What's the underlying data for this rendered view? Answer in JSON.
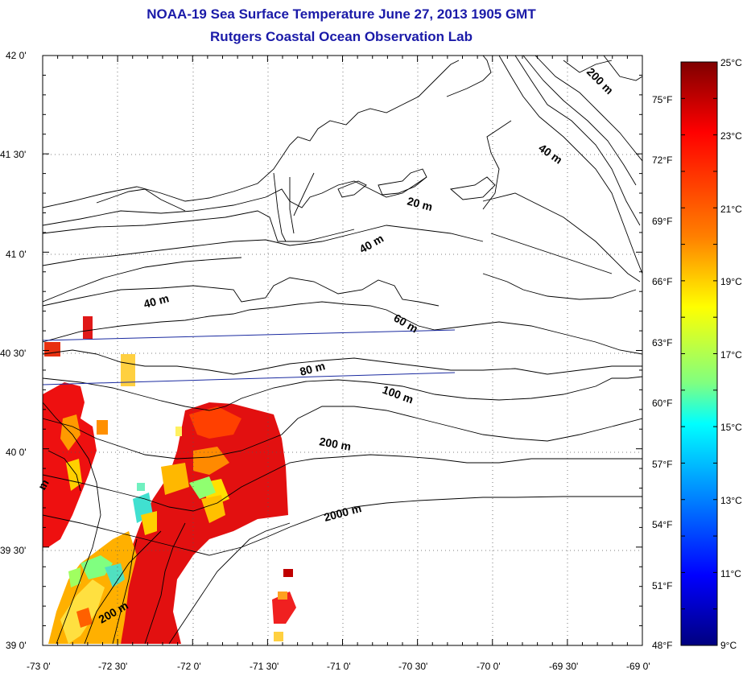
{
  "title": {
    "line1": "NOAA-19 Sea Surface Temperature June 27, 2013 1905 GMT",
    "line2": "Rutgers Coastal Ocean Observation Lab"
  },
  "map": {
    "lat_labels": [
      "42 0'",
      "41 30'",
      "41 0'",
      "40 30'",
      "40 0'",
      "39 30'",
      "39 0'"
    ],
    "lon_labels": [
      "-73 0'",
      "-72 30'",
      "-72 0'",
      "-71 30'",
      "-71 0'",
      "-70 30'",
      "-70 0'",
      "-69 30'",
      "-69 0'"
    ],
    "lat_range": [
      39.0,
      42.0
    ],
    "lon_range": [
      -73.0,
      -69.0
    ],
    "grid": true,
    "contour_labels": [
      {
        "text": "200 m",
        "lon": -69.2,
        "lat": 41.82,
        "angle": 45
      },
      {
        "text": "40 m",
        "lon": -69.55,
        "lat": 41.5,
        "angle": 35
      },
      {
        "text": "20 m",
        "lon": -70.55,
        "lat": 41.2,
        "angle": 15
      },
      {
        "text": "40 m",
        "lon": -70.75,
        "lat": 41.05,
        "angle": -30
      },
      {
        "text": "40 m",
        "lon": -72.4,
        "lat": 40.72,
        "angle": -15
      },
      {
        "text": "60 m",
        "lon": -70.45,
        "lat": 40.62,
        "angle": 30
      },
      {
        "text": "80 m",
        "lon": -71.5,
        "lat": 40.4,
        "angle": -15
      },
      {
        "text": "100 m",
        "lon": -70.75,
        "lat": 40.28,
        "angle": 20
      },
      {
        "text": "200 m",
        "lon": -71.35,
        "lat": 40.03,
        "angle": 10
      },
      {
        "text": "2000 m",
        "lon": -71.05,
        "lat": 39.7,
        "angle": -15
      },
      {
        "text": "200 m",
        "lon": -72.6,
        "lat": 39.18,
        "angle": -30
      },
      {
        "text": "m",
        "lon": -72.97,
        "lat": 39.8,
        "angle": -60
      }
    ]
  },
  "colorbar": {
    "celsius_labels": [
      "25°C",
      "23°C",
      "21°C",
      "19°C",
      "17°C",
      "15°C",
      "13°C",
      "11°C",
      "9°C"
    ],
    "fahrenheit_labels": [
      "75°F",
      "72°F",
      "69°F",
      "66°F",
      "63°F",
      "60°F",
      "57°F",
      "54°F",
      "51°F",
      "48°F"
    ],
    "min_c": 9,
    "max_c": 25,
    "colors": [
      "#7f0000",
      "#ff0000",
      "#ff8000",
      "#ffff00",
      "#80ff80",
      "#00ffff",
      "#0080ff",
      "#0000ff",
      "#00007f"
    ]
  }
}
